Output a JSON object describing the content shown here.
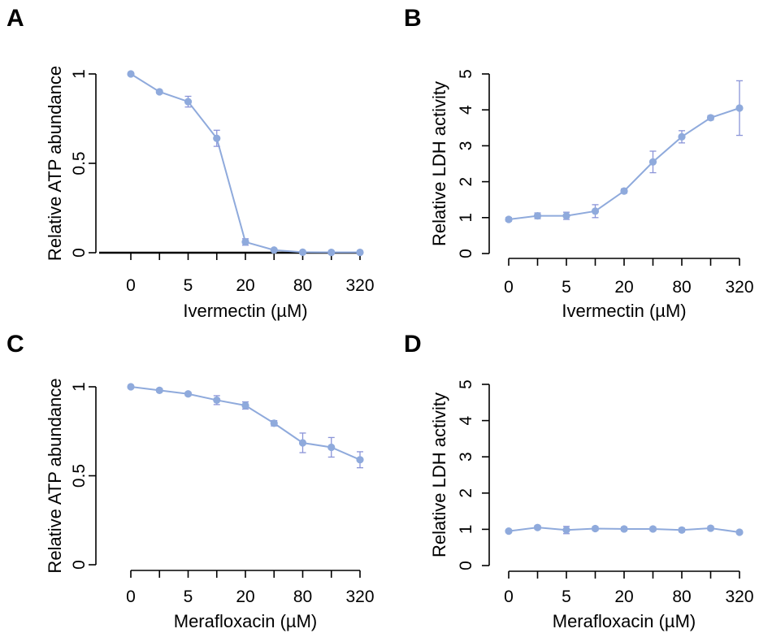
{
  "colors": {
    "series": "#8FAADC",
    "error_bar": "#8A94D8"
  },
  "chart_data": [
    {
      "panel": "A",
      "type": "line",
      "xlabel": "Ivermectin (µM)",
      "ylabel": "Relative ATP abundance",
      "x_tick_labels": [
        "0",
        "5",
        "20",
        "80",
        "320"
      ],
      "y_ticks": [
        0,
        0.5,
        1
      ],
      "y_tick_labels": [
        "0",
        "0.5",
        "1"
      ],
      "ylim": [
        0,
        1
      ],
      "x": [
        "0",
        "2.5",
        "5",
        "10",
        "20",
        "40",
        "80",
        "160",
        "320"
      ],
      "series": [
        {
          "values": [
            1.0,
            0.9,
            0.845,
            0.64,
            0.06,
            0.015,
            0.003,
            0.002,
            0.002
          ],
          "errors": [
            0.005,
            0.008,
            0.03,
            0.045,
            0.018,
            0.006,
            0.003,
            0.002,
            0.002
          ]
        }
      ]
    },
    {
      "panel": "B",
      "type": "line",
      "xlabel": "Ivermectin (µM)",
      "ylabel": "Relative LDH activity",
      "x_tick_labels": [
        "0",
        "5",
        "20",
        "80",
        "320"
      ],
      "y_ticks": [
        0,
        1,
        2,
        3,
        4,
        5
      ],
      "y_tick_labels": [
        "0",
        "1",
        "2",
        "3",
        "4",
        "5"
      ],
      "ylim": [
        0,
        5
      ],
      "x": [
        "0",
        "2.5",
        "5",
        "10",
        "20",
        "40",
        "80",
        "160",
        "320"
      ],
      "series": [
        {
          "values": [
            0.95,
            1.05,
            1.05,
            1.18,
            1.74,
            2.55,
            3.25,
            3.78,
            4.05
          ],
          "errors": [
            0.05,
            0.08,
            0.1,
            0.18,
            0.06,
            0.3,
            0.17,
            0.06,
            0.76
          ]
        }
      ]
    },
    {
      "panel": "C",
      "type": "line",
      "xlabel": "Merafloxacin (µM)",
      "ylabel": "Relative ATP abundance",
      "x_tick_labels": [
        "0",
        "5",
        "20",
        "80",
        "320"
      ],
      "y_ticks": [
        0,
        0.5,
        1
      ],
      "y_tick_labels": [
        "0",
        "0.5",
        "1"
      ],
      "ylim": [
        0,
        1
      ],
      "x": [
        "0",
        "2.5",
        "5",
        "10",
        "20",
        "40",
        "80",
        "160",
        "320"
      ],
      "series": [
        {
          "values": [
            1.0,
            0.98,
            0.96,
            0.925,
            0.895,
            0.795,
            0.685,
            0.66,
            0.59
          ],
          "errors": [
            0.005,
            0.008,
            0.01,
            0.025,
            0.02,
            0.015,
            0.055,
            0.055,
            0.045
          ]
        }
      ]
    },
    {
      "panel": "D",
      "type": "line",
      "xlabel": "Merafloxacin (µM)",
      "ylabel": "Relative LDH activity",
      "x_tick_labels": [
        "0",
        "5",
        "20",
        "80",
        "320"
      ],
      "y_ticks": [
        0,
        1,
        2,
        3,
        4,
        5
      ],
      "y_tick_labels": [
        "0",
        "1",
        "2",
        "3",
        "4",
        "5"
      ],
      "ylim": [
        0,
        5
      ],
      "x": [
        "0",
        "2.5",
        "5",
        "10",
        "20",
        "40",
        "80",
        "160",
        "320"
      ],
      "series": [
        {
          "values": [
            0.95,
            1.05,
            0.98,
            1.02,
            1.01,
            1.01,
            0.98,
            1.03,
            0.92
          ],
          "errors": [
            0.03,
            0.05,
            0.1,
            0.05,
            0.05,
            0.05,
            0.05,
            0.05,
            0.04
          ]
        }
      ]
    }
  ]
}
